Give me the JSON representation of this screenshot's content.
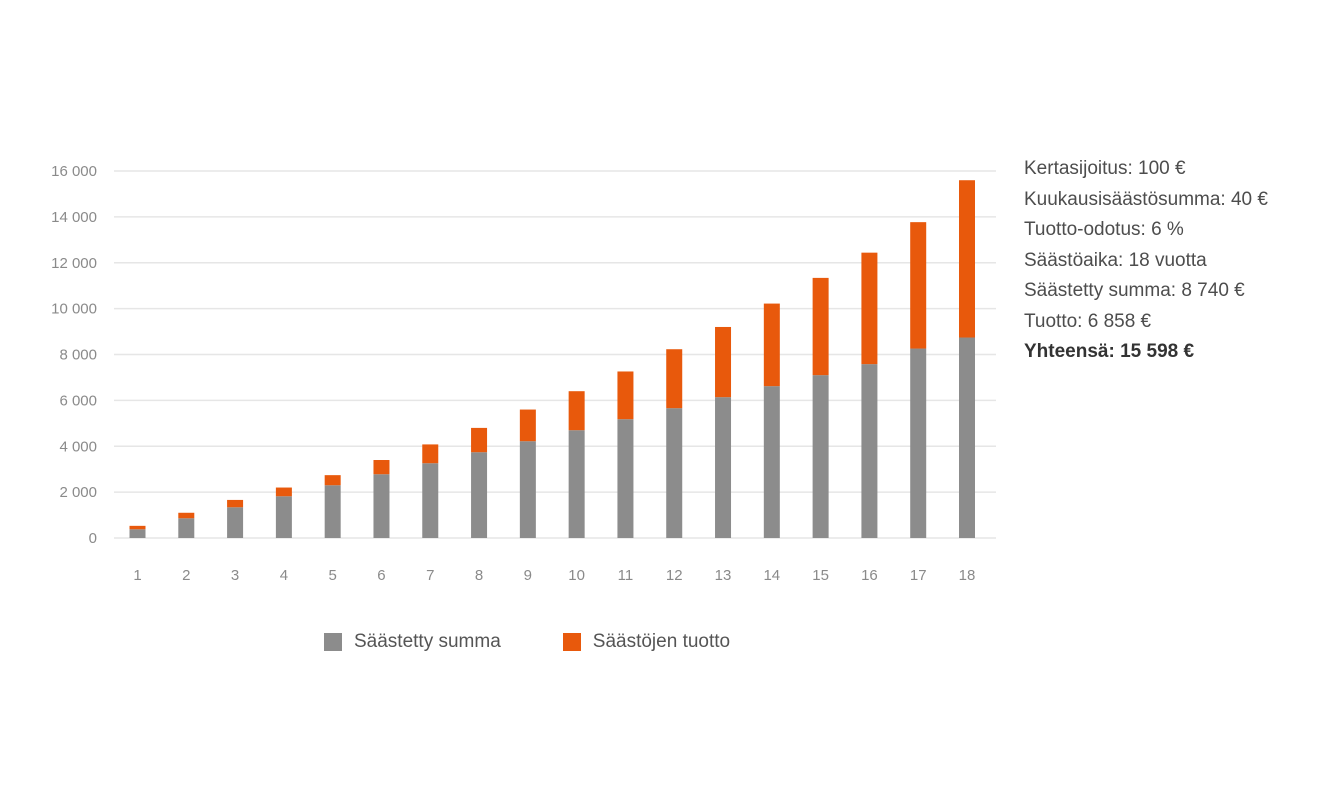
{
  "chart_data": {
    "type": "bar",
    "stacked": true,
    "categories": [
      "1",
      "2",
      "3",
      "4",
      "5",
      "6",
      "7",
      "8",
      "9",
      "10",
      "11",
      "12",
      "13",
      "14",
      "15",
      "16",
      "17",
      "18"
    ],
    "series": [
      {
        "name": "Säästetty summa",
        "color": "#8c8c8c",
        "values": [
          380,
          860,
          1340,
          1820,
          2300,
          2780,
          3260,
          3740,
          4220,
          4700,
          5180,
          5660,
          6140,
          6620,
          7100,
          7580,
          8260,
          8740
        ]
      },
      {
        "name": "Säästöjen tuotto",
        "color": "#e8590c",
        "values": [
          150,
          240,
          320,
          380,
          440,
          620,
          820,
          1060,
          1380,
          1700,
          2080,
          2570,
          3060,
          3600,
          4240,
          4860,
          5510,
          6858
        ]
      }
    ],
    "yticks": [
      0,
      2000,
      4000,
      6000,
      8000,
      10000,
      12000,
      14000,
      16000
    ],
    "ytick_labels": [
      "0",
      "2 000",
      "4 000",
      "6 000",
      "8 000",
      "10 000",
      "12 000",
      "14 000",
      "16 000"
    ],
    "ylim": [
      0,
      16000
    ],
    "title": "",
    "xlabel": "",
    "ylabel": "",
    "grid": true,
    "legend_position": "bottom"
  },
  "info": {
    "lines": [
      "Kertasijoitus: 100 €",
      "Kuukausisäästösumma: 40 €",
      "Tuotto-odotus: 6 %",
      "Säästöaika: 18 vuotta",
      "Säästetty summa: 8 740 €",
      "Tuotto: 6 858 €"
    ],
    "total": "Yhteensä: 15 598 €"
  },
  "legend": {
    "saved_label": "Säästetty summa",
    "return_label": "Säästöjen tuotto"
  },
  "colors": {
    "saved": "#8c8c8c",
    "return": "#e8590c",
    "grid": "#e6e6e6"
  }
}
